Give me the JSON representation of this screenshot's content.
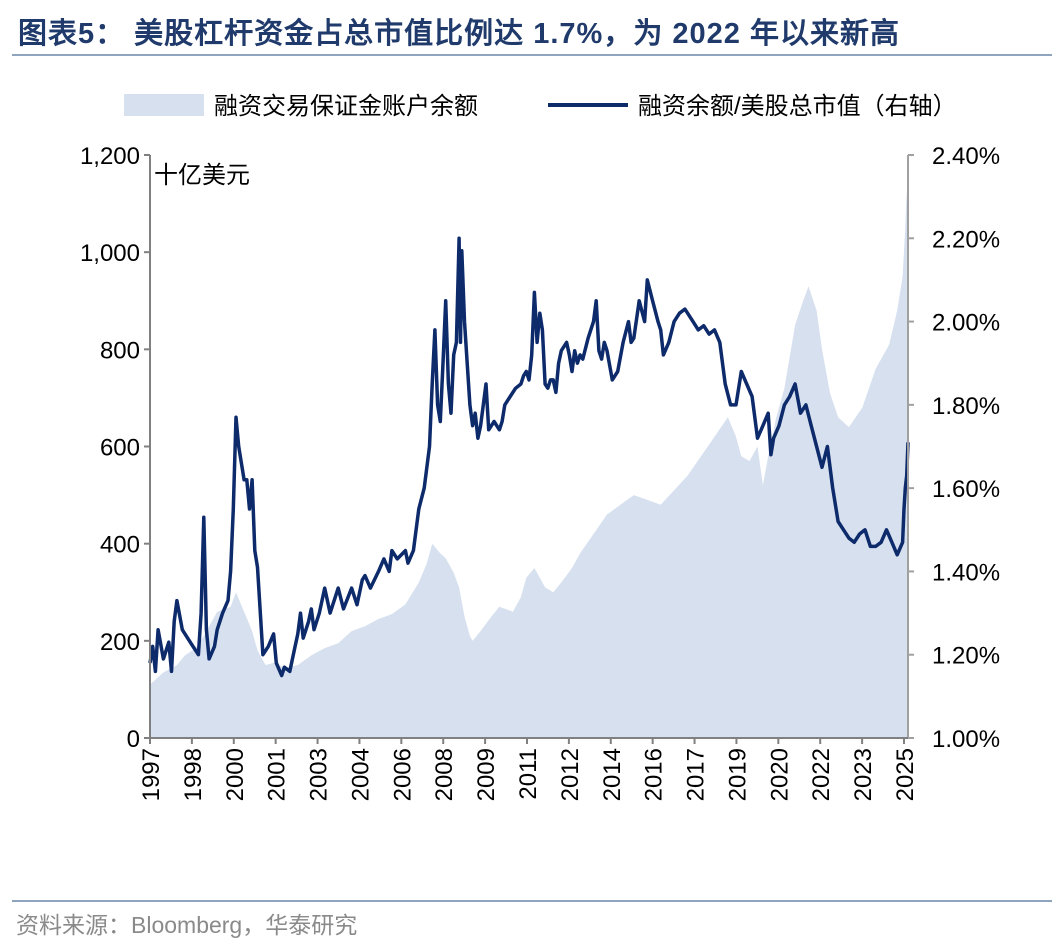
{
  "header": {
    "title": "图表5： 美股杠杆资金占总市值比例达 1.7%，为 2022 年以来新高"
  },
  "footer": {
    "source": "资料来源：Bloomberg，华泰研究"
  },
  "chart_data": {
    "type": "area",
    "title": "图表5： 美股杠杆资金占总市值比例达 1.7%，为 2022 年以来新高",
    "unit_label": "十亿美元",
    "x_ticks": [
      "1997",
      "1998",
      "2000",
      "2001",
      "2003",
      "2004",
      "2006",
      "2008",
      "2009",
      "2011",
      "2012",
      "2014",
      "2016",
      "2017",
      "2019",
      "2020",
      "2022",
      "2023",
      "2025"
    ],
    "y_left": {
      "ticks": [
        "0",
        "200",
        "400",
        "600",
        "800",
        "1,000",
        "1,200"
      ],
      "min": 0,
      "max": 1200
    },
    "y_right": {
      "ticks": [
        "1.00%",
        "1.20%",
        "1.40%",
        "1.60%",
        "1.80%",
        "2.00%",
        "2.20%",
        "2.40%"
      ],
      "min": 1.0,
      "max": 2.4
    },
    "legend_position": "top",
    "grid": false,
    "x_range": [
      1997.0,
      2025.2
    ],
    "series": [
      {
        "name": "融资交易保证金账户余额",
        "kind": "area",
        "axis": "left",
        "color": "#d6e0ef",
        "points": [
          [
            1997.0,
            110
          ],
          [
            1997.5,
            135
          ],
          [
            1998.0,
            150
          ],
          [
            1998.3,
            170
          ],
          [
            1998.7,
            185
          ],
          [
            1999.0,
            210
          ],
          [
            1999.5,
            260
          ],
          [
            2000.0,
            270
          ],
          [
            2000.2,
            300
          ],
          [
            2000.5,
            260
          ],
          [
            2000.8,
            220
          ],
          [
            2001.0,
            180
          ],
          [
            2001.3,
            150
          ],
          [
            2001.6,
            155
          ],
          [
            2002.0,
            145
          ],
          [
            2002.5,
            150
          ],
          [
            2003.0,
            170
          ],
          [
            2003.5,
            185
          ],
          [
            2004.0,
            195
          ],
          [
            2004.5,
            220
          ],
          [
            2005.0,
            230
          ],
          [
            2005.5,
            245
          ],
          [
            2006.0,
            255
          ],
          [
            2006.5,
            275
          ],
          [
            2007.0,
            320
          ],
          [
            2007.3,
            360
          ],
          [
            2007.5,
            400
          ],
          [
            2007.8,
            380
          ],
          [
            2008.0,
            370
          ],
          [
            2008.3,
            340
          ],
          [
            2008.5,
            310
          ],
          [
            2008.7,
            250
          ],
          [
            2008.9,
            210
          ],
          [
            2009.0,
            200
          ],
          [
            2009.3,
            220
          ],
          [
            2009.7,
            250
          ],
          [
            2010.0,
            270
          ],
          [
            2010.5,
            260
          ],
          [
            2010.8,
            290
          ],
          [
            2011.0,
            330
          ],
          [
            2011.3,
            350
          ],
          [
            2011.7,
            310
          ],
          [
            2012.0,
            300
          ],
          [
            2012.3,
            320
          ],
          [
            2012.7,
            350
          ],
          [
            2013.0,
            380
          ],
          [
            2013.5,
            420
          ],
          [
            2014.0,
            460
          ],
          [
            2014.5,
            480
          ],
          [
            2015.0,
            500
          ],
          [
            2015.5,
            490
          ],
          [
            2016.0,
            480
          ],
          [
            2016.5,
            510
          ],
          [
            2017.0,
            540
          ],
          [
            2017.5,
            580
          ],
          [
            2018.0,
            620
          ],
          [
            2018.5,
            660
          ],
          [
            2018.8,
            620
          ],
          [
            2019.0,
            580
          ],
          [
            2019.3,
            570
          ],
          [
            2019.6,
            600
          ],
          [
            2019.8,
            520
          ],
          [
            2020.0,
            580
          ],
          [
            2020.3,
            660
          ],
          [
            2020.6,
            720
          ],
          [
            2021.0,
            850
          ],
          [
            2021.3,
            900
          ],
          [
            2021.5,
            930
          ],
          [
            2021.8,
            880
          ],
          [
            2022.0,
            800
          ],
          [
            2022.3,
            710
          ],
          [
            2022.6,
            660
          ],
          [
            2023.0,
            640
          ],
          [
            2023.5,
            680
          ],
          [
            2024.0,
            760
          ],
          [
            2024.5,
            810
          ],
          [
            2024.8,
            880
          ],
          [
            2025.0,
            950
          ],
          [
            2025.1,
            1050
          ],
          [
            2025.15,
            1130
          ],
          [
            2025.2,
            1000
          ]
        ]
      },
      {
        "name": "融资余额/美股总市值（右轴）",
        "kind": "line",
        "axis": "right",
        "color": "#0d2a6b",
        "points": [
          [
            1997.0,
            1.18
          ],
          [
            1997.1,
            1.22
          ],
          [
            1997.2,
            1.16
          ],
          [
            1997.3,
            1.26
          ],
          [
            1997.5,
            1.19
          ],
          [
            1997.7,
            1.23
          ],
          [
            1997.8,
            1.16
          ],
          [
            1997.9,
            1.28
          ],
          [
            1998.0,
            1.33
          ],
          [
            1998.2,
            1.26
          ],
          [
            1998.4,
            1.24
          ],
          [
            1998.6,
            1.22
          ],
          [
            1998.8,
            1.2
          ],
          [
            1998.9,
            1.3
          ],
          [
            1999.0,
            1.53
          ],
          [
            1999.1,
            1.26
          ],
          [
            1999.2,
            1.19
          ],
          [
            1999.4,
            1.22
          ],
          [
            1999.5,
            1.26
          ],
          [
            1999.7,
            1.3
          ],
          [
            1999.9,
            1.33
          ],
          [
            2000.0,
            1.4
          ],
          [
            2000.1,
            1.55
          ],
          [
            2000.2,
            1.77
          ],
          [
            2000.3,
            1.7
          ],
          [
            2000.5,
            1.62
          ],
          [
            2000.6,
            1.62
          ],
          [
            2000.7,
            1.55
          ],
          [
            2000.8,
            1.62
          ],
          [
            2000.9,
            1.45
          ],
          [
            2001.0,
            1.41
          ],
          [
            2001.2,
            1.2
          ],
          [
            2001.4,
            1.22
          ],
          [
            2001.6,
            1.25
          ],
          [
            2001.7,
            1.18
          ],
          [
            2001.9,
            1.15
          ],
          [
            2002.0,
            1.17
          ],
          [
            2002.2,
            1.16
          ],
          [
            2002.4,
            1.22
          ],
          [
            2002.5,
            1.25
          ],
          [
            2002.6,
            1.3
          ],
          [
            2002.7,
            1.24
          ],
          [
            2002.9,
            1.28
          ],
          [
            2003.0,
            1.31
          ],
          [
            2003.1,
            1.26
          ],
          [
            2003.3,
            1.3
          ],
          [
            2003.5,
            1.36
          ],
          [
            2003.7,
            1.3
          ],
          [
            2003.9,
            1.34
          ],
          [
            2004.0,
            1.36
          ],
          [
            2004.2,
            1.31
          ],
          [
            2004.5,
            1.36
          ],
          [
            2004.7,
            1.32
          ],
          [
            2004.9,
            1.38
          ],
          [
            2005.0,
            1.39
          ],
          [
            2005.2,
            1.36
          ],
          [
            2005.5,
            1.4
          ],
          [
            2005.7,
            1.43
          ],
          [
            2005.9,
            1.4
          ],
          [
            2006.0,
            1.45
          ],
          [
            2006.2,
            1.43
          ],
          [
            2006.5,
            1.45
          ],
          [
            2006.6,
            1.42
          ],
          [
            2006.8,
            1.45
          ],
          [
            2007.0,
            1.55
          ],
          [
            2007.2,
            1.6
          ],
          [
            2007.4,
            1.7
          ],
          [
            2007.5,
            1.85
          ],
          [
            2007.6,
            1.98
          ],
          [
            2007.7,
            1.8
          ],
          [
            2007.8,
            1.76
          ],
          [
            2007.9,
            1.9
          ],
          [
            2008.0,
            2.05
          ],
          [
            2008.1,
            1.85
          ],
          [
            2008.2,
            1.78
          ],
          [
            2008.3,
            1.92
          ],
          [
            2008.4,
            1.95
          ],
          [
            2008.5,
            2.2
          ],
          [
            2008.55,
            1.95
          ],
          [
            2008.6,
            2.17
          ],
          [
            2008.7,
            2.0
          ],
          [
            2008.8,
            1.9
          ],
          [
            2008.9,
            1.8
          ],
          [
            2009.0,
            1.75
          ],
          [
            2009.1,
            1.78
          ],
          [
            2009.2,
            1.72
          ],
          [
            2009.3,
            1.75
          ],
          [
            2009.4,
            1.8
          ],
          [
            2009.5,
            1.85
          ],
          [
            2009.6,
            1.74
          ],
          [
            2009.8,
            1.76
          ],
          [
            2010.0,
            1.74
          ],
          [
            2010.1,
            1.76
          ],
          [
            2010.2,
            1.8
          ],
          [
            2010.4,
            1.82
          ],
          [
            2010.6,
            1.84
          ],
          [
            2010.8,
            1.85
          ],
          [
            2010.9,
            1.87
          ],
          [
            2011.0,
            1.88
          ],
          [
            2011.1,
            1.86
          ],
          [
            2011.2,
            1.92
          ],
          [
            2011.3,
            2.07
          ],
          [
            2011.4,
            1.95
          ],
          [
            2011.5,
            2.02
          ],
          [
            2011.6,
            1.98
          ],
          [
            2011.7,
            1.85
          ],
          [
            2011.8,
            1.84
          ],
          [
            2011.9,
            1.86
          ],
          [
            2012.0,
            1.86
          ],
          [
            2012.1,
            1.83
          ],
          [
            2012.2,
            1.9
          ],
          [
            2012.3,
            1.93
          ],
          [
            2012.5,
            1.95
          ],
          [
            2012.6,
            1.92
          ],
          [
            2012.7,
            1.88
          ],
          [
            2012.8,
            1.93
          ],
          [
            2012.9,
            1.9
          ],
          [
            2013.0,
            1.92
          ],
          [
            2013.1,
            1.91
          ],
          [
            2013.3,
            1.96
          ],
          [
            2013.5,
            2.0
          ],
          [
            2013.6,
            2.05
          ],
          [
            2013.7,
            1.93
          ],
          [
            2013.8,
            1.91
          ],
          [
            2013.9,
            1.95
          ],
          [
            2014.0,
            1.93
          ],
          [
            2014.2,
            1.86
          ],
          [
            2014.4,
            1.88
          ],
          [
            2014.6,
            1.95
          ],
          [
            2014.8,
            2.0
          ],
          [
            2014.9,
            1.95
          ],
          [
            2015.0,
            1.96
          ],
          [
            2015.2,
            2.05
          ],
          [
            2015.4,
            2.0
          ],
          [
            2015.5,
            2.1
          ],
          [
            2015.7,
            2.05
          ],
          [
            2015.9,
            2.0
          ],
          [
            2016.0,
            1.98
          ],
          [
            2016.1,
            1.92
          ],
          [
            2016.3,
            1.95
          ],
          [
            2016.5,
            2.0
          ],
          [
            2016.7,
            2.02
          ],
          [
            2016.9,
            2.03
          ],
          [
            2017.0,
            2.02
          ],
          [
            2017.2,
            2.0
          ],
          [
            2017.4,
            1.98
          ],
          [
            2017.6,
            1.99
          ],
          [
            2017.8,
            1.97
          ],
          [
            2018.0,
            1.98
          ],
          [
            2018.2,
            1.95
          ],
          [
            2018.4,
            1.85
          ],
          [
            2018.6,
            1.8
          ],
          [
            2018.8,
            1.8
          ],
          [
            2019.0,
            1.88
          ],
          [
            2019.2,
            1.85
          ],
          [
            2019.4,
            1.82
          ],
          [
            2019.6,
            1.72
          ],
          [
            2019.8,
            1.75
          ],
          [
            2020.0,
            1.78
          ],
          [
            2020.1,
            1.68
          ],
          [
            2020.2,
            1.72
          ],
          [
            2020.4,
            1.75
          ],
          [
            2020.6,
            1.8
          ],
          [
            2020.8,
            1.82
          ],
          [
            2021.0,
            1.85
          ],
          [
            2021.2,
            1.78
          ],
          [
            2021.4,
            1.8
          ],
          [
            2021.6,
            1.75
          ],
          [
            2021.8,
            1.7
          ],
          [
            2022.0,
            1.65
          ],
          [
            2022.2,
            1.7
          ],
          [
            2022.4,
            1.6
          ],
          [
            2022.6,
            1.52
          ],
          [
            2022.8,
            1.5
          ],
          [
            2023.0,
            1.48
          ],
          [
            2023.2,
            1.47
          ],
          [
            2023.4,
            1.49
          ],
          [
            2023.6,
            1.5
          ],
          [
            2023.8,
            1.46
          ],
          [
            2024.0,
            1.46
          ],
          [
            2024.2,
            1.47
          ],
          [
            2024.4,
            1.5
          ],
          [
            2024.6,
            1.47
          ],
          [
            2024.8,
            1.44
          ],
          [
            2025.0,
            1.47
          ],
          [
            2025.05,
            1.55
          ],
          [
            2025.1,
            1.6
          ],
          [
            2025.15,
            1.63
          ],
          [
            2025.2,
            1.71
          ]
        ]
      }
    ]
  }
}
